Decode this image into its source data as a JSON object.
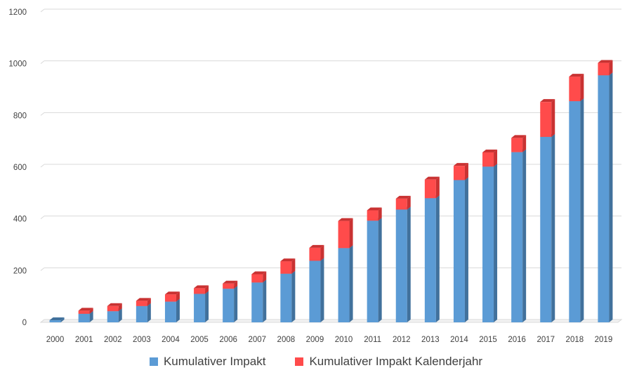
{
  "chart_data": {
    "type": "bar",
    "stacked": true,
    "style": "3d-column",
    "title": "",
    "xlabel": "",
    "ylabel": "",
    "ylim": [
      0,
      1200
    ],
    "yticks": [
      0,
      200,
      400,
      600,
      800,
      1000,
      1200
    ],
    "categories": [
      "2000",
      "2001",
      "2002",
      "2003",
      "2004",
      "2005",
      "2006",
      "2007",
      "2008",
      "2009",
      "2010",
      "2011",
      "2012",
      "2013",
      "2014",
      "2015",
      "2016",
      "2017",
      "2018",
      "2019"
    ],
    "series": [
      {
        "name": "Kumulativer Impakt",
        "color": "#5B9BD5",
        "side_color": "#41719C",
        "values": [
          8,
          33,
          43,
          63,
          80,
          110,
          130,
          154,
          188,
          238,
          287,
          393,
          436,
          480,
          550,
          602,
          658,
          717,
          855,
          955
        ]
      },
      {
        "name": "Kumulativer Impakt Kalenderjahr",
        "color": "#FF4B4B",
        "side_color": "#C93232",
        "values": [
          0,
          12,
          20,
          20,
          28,
          22,
          20,
          32,
          48,
          50,
          105,
          40,
          42,
          72,
          55,
          55,
          55,
          135,
          95,
          48
        ]
      }
    ],
    "legend_position": "bottom-center",
    "grid": true
  }
}
